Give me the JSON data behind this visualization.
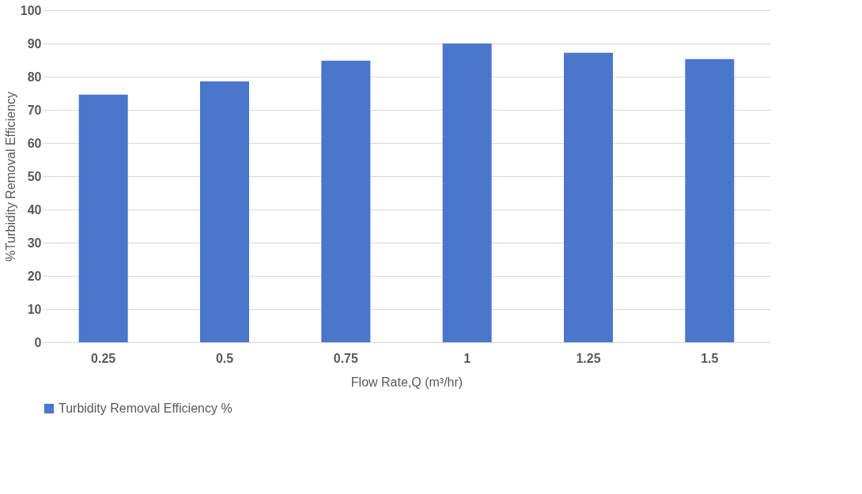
{
  "chart_data": {
    "type": "bar",
    "xlabel": "Flow Rate,Q (m³/hr)",
    "ylabel": "%Turbidity Removal Efficiency",
    "categories": [
      "0.25",
      "0.5",
      "0.75",
      "1",
      "1.25",
      "1.5"
    ],
    "series": [
      {
        "name": "Turbidity Removal Efficiency %",
        "color": "#4a76cc",
        "values": [
          74.6,
          78.6,
          84.8,
          90.0,
          87.2,
          85.3
        ]
      }
    ],
    "ylim": [
      0,
      100
    ],
    "yticks": [
      0,
      10,
      20,
      30,
      40,
      50,
      60,
      70,
      80,
      90,
      100
    ],
    "grid": "y",
    "legend": "bottom"
  }
}
